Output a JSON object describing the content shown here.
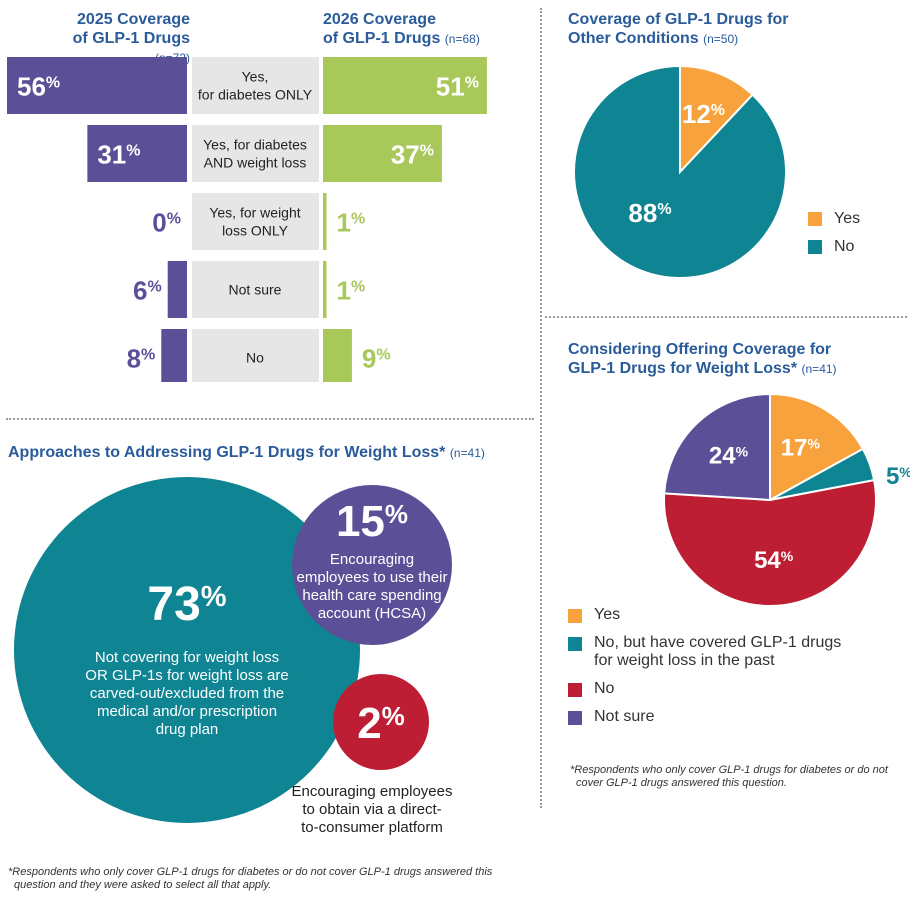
{
  "colors": {
    "purple": "#5b5097",
    "green": "#a9c85a",
    "label_bg": "#e6e6e6",
    "orange": "#f7a23c",
    "teal": "#0f8492",
    "red": "#be1e34",
    "header_blue": "#2a5b9a"
  },
  "left_headers": {
    "h2025_line1": "2025 Coverage",
    "h2025_line2": "of GLP-1 Drugs",
    "h2025_n": "(n=72)",
    "h2026_line1": "2026 Coverage",
    "h2026_line2": "of GLP-1 Drugs",
    "h2026_n": "(n=68)"
  },
  "pie1_header": {
    "line1": "Coverage of GLP-1 Drugs for",
    "line2": "Other Conditions",
    "n": "(n=50)"
  },
  "pie2_header": {
    "line1": "Considering Offering Coverage for",
    "line2": "GLP-1 Drugs for Weight Loss*",
    "n": "(n=41)"
  },
  "approaches_header": {
    "title": "Approaches to Addressing GLP-1 Drugs for Weight Loss*",
    "n": "(n=41)"
  },
  "bubbles": {
    "big": {
      "pct": "73",
      "line1": "Not covering for weight loss",
      "line2": "OR GLP-1s for weight loss are",
      "line3": "carved-out/excluded from the",
      "line4": "medical and/or prescription",
      "line5": "drug plan"
    },
    "mid": {
      "pct": "15",
      "line1": "Encouraging",
      "line2": "employees to use their",
      "line3": "health care spending",
      "line4": "account (HCSA)"
    },
    "small": {
      "pct": "2",
      "line1": "Encouraging employees",
      "line2": "to obtain via a direct-",
      "line3": "to-consumer platform"
    }
  },
  "footnotes": {
    "left_line1": "*Respondents who only cover GLP-1 drugs for diabetes or do not cover GLP-1 drugs answered this",
    "left_line2": "question and they were asked to select all that apply.",
    "right_line1": "*Respondents who only cover GLP-1 drugs for diabetes or do not",
    "right_line2": "cover GLP-1 drugs answered this question."
  },
  "pie1_legend": [
    {
      "label": "Yes",
      "color": "#f7a23c"
    },
    {
      "label": "No",
      "color": "#0f8492"
    }
  ],
  "pie2_legend": [
    {
      "label": "Yes",
      "color": "#f7a23c"
    },
    {
      "label": "No, but have covered GLP-1 drugs",
      "label2": "for weight loss in the past",
      "color": "#0f8492"
    },
    {
      "label": "No",
      "color": "#be1e34"
    },
    {
      "label": "Not sure",
      "color": "#5b5097"
    }
  ],
  "chart_data": [
    {
      "type": "bar",
      "title": "2025 Coverage of GLP-1 Drugs (n=72) / 2026 Coverage of GLP-1 Drugs (n=68)",
      "categories": [
        [
          "Yes,",
          "for diabetes ONLY"
        ],
        [
          "Yes, for diabetes",
          "AND weight loss"
        ],
        [
          "Yes, for weight",
          "loss ONLY"
        ],
        [
          "Not sure"
        ],
        [
          "No"
        ]
      ],
      "series": [
        {
          "name": "2025 Coverage of GLP-1 Drugs",
          "values": [
            56,
            31,
            0,
            6,
            8
          ]
        },
        {
          "name": "2026 Coverage of GLP-1 Drugs",
          "values": [
            51,
            37,
            1,
            1,
            9
          ]
        }
      ],
      "xlim": [
        0,
        56
      ]
    },
    {
      "type": "pie",
      "title": "Coverage of GLP-1 Drugs for Other Conditions (n=50)",
      "labels": [
        "Yes",
        "No"
      ],
      "values": [
        12,
        88
      ]
    },
    {
      "type": "pie",
      "title": "Considering Offering Coverage for GLP-1 Drugs for Weight Loss* (n=41)",
      "labels": [
        "Yes",
        "No, but have covered GLP-1 drugs for weight loss in the past",
        "No",
        "Not sure"
      ],
      "values": [
        17,
        5,
        54,
        24
      ]
    },
    {
      "type": "bubble",
      "title": "Approaches to Addressing GLP-1 Drugs for Weight Loss* (n=41)",
      "labels": [
        "Not covering for weight loss OR GLP-1s for weight loss are carved-out/excluded from the medical and/or prescription drug plan",
        "Encouraging employees to use their health care spending account (HCSA)",
        "Encouraging employees to obtain via a direct-to-consumer platform"
      ],
      "values": [
        73,
        15,
        2
      ]
    }
  ]
}
